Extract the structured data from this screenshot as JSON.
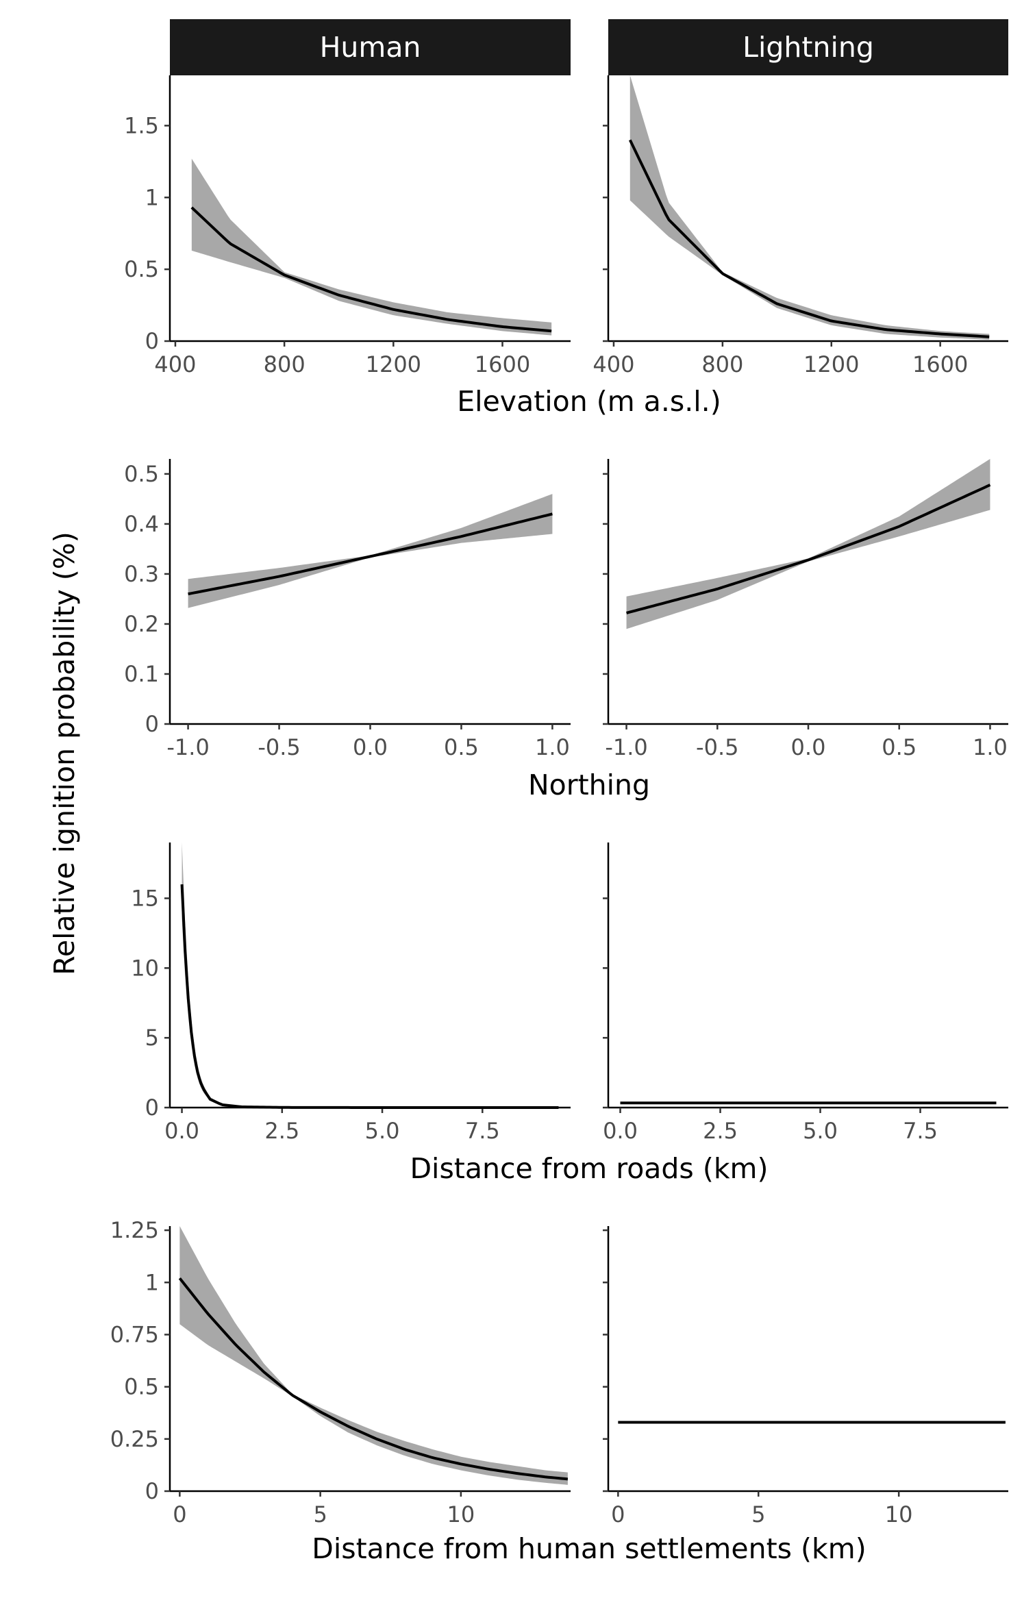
{
  "facets": [
    "Human",
    "Lightning"
  ],
  "y_title": "Relative ignition probability (%)",
  "colors": {
    "band": "#999999",
    "line": "#000000",
    "strip_bg": "#1a1a1a",
    "strip_text": "#ffffff"
  },
  "chart_data": [
    {
      "type": "line",
      "xlabel": "Elevation (m a.s.l.)",
      "xlim": [
        380,
        1850
      ],
      "x_ticks": [
        400,
        800,
        1200,
        1600
      ],
      "x_tick_labels": [
        "400",
        "800",
        "1200",
        "1600"
      ],
      "ylim": [
        0,
        1.85
      ],
      "y_ticks": [
        0,
        0.5,
        1,
        1.5
      ],
      "y_tick_labels": [
        "0",
        "0.5",
        "1",
        "1.5"
      ],
      "series": [
        {
          "facet": "Human",
          "x": [
            460,
            600,
            800,
            1000,
            1200,
            1400,
            1600,
            1780
          ],
          "y": [
            0.93,
            0.68,
            0.46,
            0.32,
            0.22,
            0.15,
            0.1,
            0.07
          ],
          "lower": [
            0.63,
            0.55,
            0.44,
            0.28,
            0.18,
            0.12,
            0.07,
            0.04
          ],
          "upper": [
            1.27,
            0.85,
            0.48,
            0.36,
            0.27,
            0.2,
            0.16,
            0.13
          ]
        },
        {
          "facet": "Lightning",
          "x": [
            460,
            600,
            800,
            1000,
            1200,
            1400,
            1600,
            1780
          ],
          "y": [
            1.4,
            0.85,
            0.47,
            0.26,
            0.14,
            0.08,
            0.05,
            0.03
          ],
          "lower": [
            0.98,
            0.73,
            0.46,
            0.23,
            0.11,
            0.05,
            0.025,
            0.01
          ],
          "upper": [
            1.85,
            0.97,
            0.48,
            0.3,
            0.18,
            0.11,
            0.07,
            0.05
          ]
        }
      ]
    },
    {
      "type": "line",
      "xlabel": "Northing",
      "xlim": [
        -1.1,
        1.1
      ],
      "x_ticks": [
        -1.0,
        -0.5,
        0.0,
        0.5,
        1.0
      ],
      "x_tick_labels": [
        "-1.0",
        "-0.5",
        "0.0",
        "0.5",
        "1.0"
      ],
      "ylim": [
        0,
        0.53
      ],
      "y_ticks": [
        0,
        0.1,
        0.2,
        0.3,
        0.4,
        0.5
      ],
      "y_tick_labels": [
        "0",
        "0.1",
        "0.2",
        "0.3",
        "0.4",
        "0.5"
      ],
      "series": [
        {
          "facet": "Human",
          "x": [
            -1.0,
            -0.5,
            0.0,
            0.5,
            1.0
          ],
          "y": [
            0.26,
            0.295,
            0.335,
            0.375,
            0.42
          ],
          "lower": [
            0.232,
            0.278,
            0.333,
            0.362,
            0.38
          ],
          "upper": [
            0.29,
            0.312,
            0.337,
            0.392,
            0.46
          ]
        },
        {
          "facet": "Lightning",
          "x": [
            -1.0,
            -0.5,
            0.0,
            0.5,
            1.0
          ],
          "y": [
            0.222,
            0.27,
            0.328,
            0.395,
            0.478
          ],
          "lower": [
            0.19,
            0.248,
            0.325,
            0.375,
            0.428
          ],
          "upper": [
            0.255,
            0.292,
            0.331,
            0.415,
            0.53
          ]
        }
      ]
    },
    {
      "type": "line",
      "xlabel": "Distance from roads (km)",
      "xlim": [
        -0.3,
        9.7
      ],
      "x_ticks": [
        0.0,
        2.5,
        5.0,
        7.5
      ],
      "x_tick_labels": [
        "0.0",
        "2.5",
        "5.0",
        "7.5"
      ],
      "ylim": [
        0,
        19
      ],
      "y_ticks": [
        0,
        5,
        10,
        15
      ],
      "y_tick_labels": [
        "0",
        "5",
        "10",
        "15"
      ],
      "series": [
        {
          "facet": "Human",
          "x": [
            0.0,
            0.1,
            0.2,
            0.3,
            0.4,
            0.5,
            0.7,
            1.0,
            1.5,
            2.5,
            5.0,
            9.4
          ],
          "y": [
            16.0,
            10.0,
            6.2,
            3.9,
            2.4,
            1.5,
            0.6,
            0.2,
            0.05,
            0.01,
            0.0,
            0.0
          ],
          "lower": [
            13.5,
            8.4,
            5.2,
            3.2,
            2.0,
            1.2,
            0.5,
            0.15,
            0.03,
            0.0,
            0.0,
            0.0
          ],
          "upper": [
            19.0,
            11.8,
            7.3,
            4.6,
            2.9,
            1.8,
            0.75,
            0.28,
            0.08,
            0.02,
            0.0,
            0.0
          ]
        },
        {
          "facet": "Lightning",
          "x": [
            0.0,
            9.4
          ],
          "y": [
            0.33,
            0.33
          ],
          "lower": [
            0.33,
            0.33
          ],
          "upper": [
            0.33,
            0.33
          ]
        }
      ]
    },
    {
      "type": "line",
      "xlabel": "Distance from human settlements (km)",
      "xlim": [
        -0.35,
        13.9
      ],
      "x_ticks": [
        0,
        5,
        10
      ],
      "x_tick_labels": [
        "0",
        "5",
        "10"
      ],
      "ylim": [
        0,
        1.27
      ],
      "y_ticks": [
        0,
        0.25,
        0.5,
        0.75,
        1,
        1.25
      ],
      "y_tick_labels": [
        "0",
        "0.25",
        "0.5",
        "0.75",
        "1",
        "1.25"
      ],
      "series": [
        {
          "facet": "Human",
          "x": [
            0,
            1,
            2,
            3,
            4,
            5,
            6,
            7,
            8,
            9,
            10,
            11,
            12,
            13,
            13.8
          ],
          "y": [
            1.02,
            0.85,
            0.7,
            0.57,
            0.46,
            0.38,
            0.31,
            0.25,
            0.2,
            0.16,
            0.13,
            0.105,
            0.085,
            0.068,
            0.058
          ],
          "lower": [
            0.8,
            0.7,
            0.62,
            0.54,
            0.455,
            0.36,
            0.28,
            0.22,
            0.17,
            0.13,
            0.1,
            0.075,
            0.055,
            0.04,
            0.03
          ],
          "upper": [
            1.27,
            1.02,
            0.8,
            0.61,
            0.465,
            0.4,
            0.34,
            0.285,
            0.24,
            0.2,
            0.165,
            0.14,
            0.12,
            0.1,
            0.09
          ]
        },
        {
          "facet": "Lightning",
          "x": [
            0,
            13.8
          ],
          "y": [
            0.33,
            0.33
          ],
          "lower": [
            0.33,
            0.33
          ],
          "upper": [
            0.33,
            0.33
          ]
        }
      ]
    }
  ]
}
